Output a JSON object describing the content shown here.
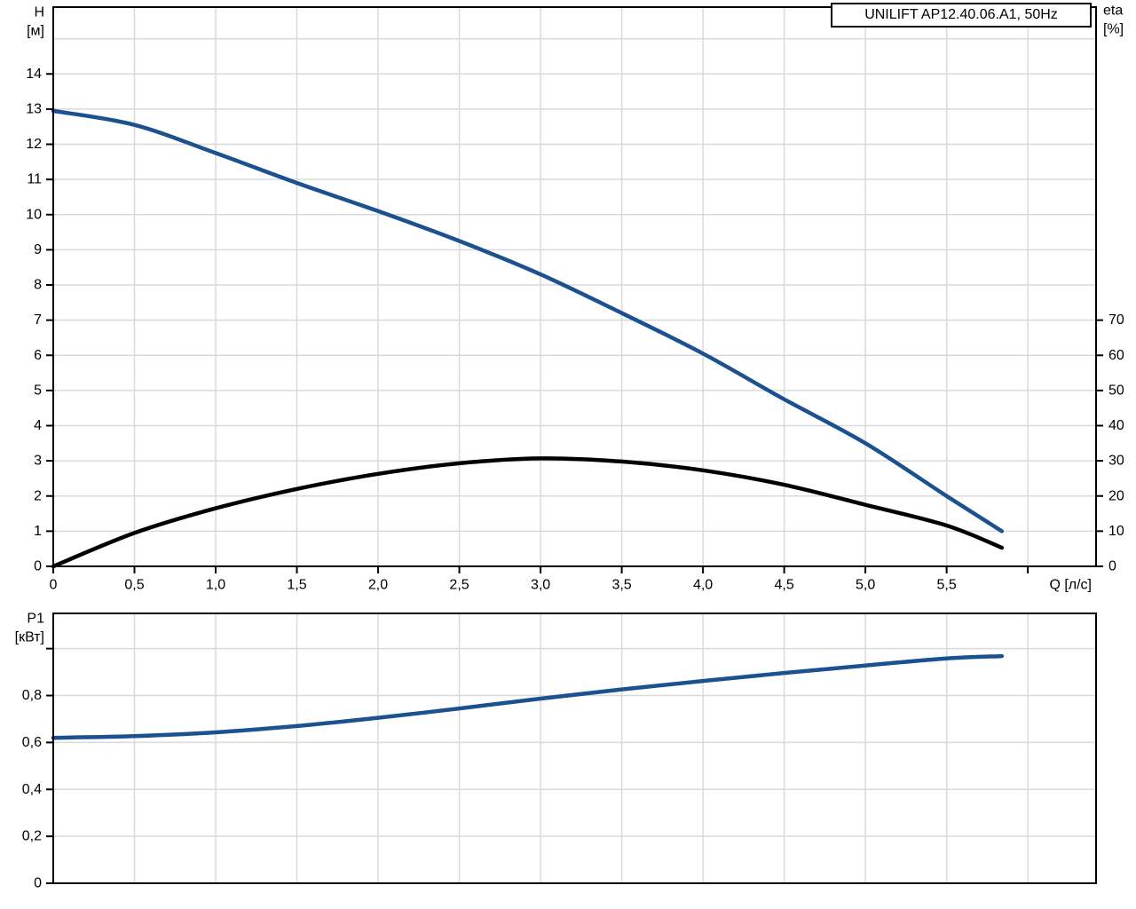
{
  "colors": {
    "curve_blue": "#1b5190",
    "curve_black": "#000000",
    "grid": "#d9d9d9",
    "axis": "#000000",
    "background": "#ffffff"
  },
  "chart_data": [
    {
      "type": "line",
      "id": "head-efficiency-chart",
      "title": "UNILIFT AP12.40.06.A1, 50Hz",
      "x_axis": {
        "label": "Q [л/с]",
        "min": 0,
        "max": 6.42,
        "grid_step": 0.5,
        "tick_values": [
          0,
          0.5,
          1.0,
          1.5,
          2.0,
          2.5,
          3.0,
          3.5,
          4.0,
          4.5,
          5.0,
          5.5
        ],
        "tick_labels": [
          "0",
          "0,5",
          "1,0",
          "1,5",
          "2,0",
          "2,5",
          "3,0",
          "3,5",
          "4,0",
          "4,5",
          "5,0",
          "5,5"
        ],
        "extra_tick_values": [
          6.0
        ]
      },
      "y_axis": {
        "label": "H",
        "unit": "[м]",
        "min": 0,
        "max": 15.9,
        "grid_step": 1,
        "tick_values": [
          0,
          1,
          2,
          3,
          4,
          5,
          6,
          7,
          8,
          9,
          10,
          11,
          12,
          13,
          14
        ],
        "tick_labels": [
          "0",
          "1",
          "2",
          "3",
          "4",
          "5",
          "6",
          "7",
          "8",
          "9",
          "10",
          "11",
          "12",
          "13",
          "14"
        ]
      },
      "y2_axis": {
        "label": "eta",
        "unit": "[%]",
        "primary_scale": 0.1,
        "tick_values": [
          0,
          10,
          20,
          30,
          40,
          50,
          60,
          70
        ],
        "tick_labels": [
          "0",
          "10",
          "20",
          "30",
          "40",
          "50",
          "60",
          "70"
        ]
      },
      "series": [
        {
          "name": "H(Q)",
          "axis": "y",
          "color_key": "curve_blue",
          "x": [
            0,
            0.5,
            1.0,
            1.5,
            2.0,
            2.5,
            3.0,
            3.5,
            4.0,
            4.5,
            5.0,
            5.5,
            5.84
          ],
          "y": [
            12.95,
            12.55,
            11.75,
            10.9,
            10.1,
            9.25,
            8.3,
            7.2,
            6.05,
            4.75,
            3.5,
            2.0,
            1.0
          ]
        },
        {
          "name": "eta(Q)",
          "axis": "y2",
          "color_key": "curve_black",
          "x": [
            0,
            0.5,
            1.0,
            1.5,
            2.0,
            2.5,
            3.0,
            3.5,
            4.0,
            4.5,
            5.0,
            5.5,
            5.84
          ],
          "y": [
            0,
            9.5,
            16.5,
            22.0,
            26.3,
            29.3,
            30.7,
            29.8,
            27.3,
            23.2,
            17.5,
            11.6,
            5.3
          ]
        }
      ]
    },
    {
      "type": "line",
      "id": "power-chart",
      "title": "",
      "x_axis": {
        "label": "",
        "min": 0,
        "max": 6.42,
        "grid_step": 0.5,
        "tick_values": [],
        "tick_labels": [],
        "extra_tick_values": []
      },
      "y_axis": {
        "label": "P1",
        "unit": "[кВт]",
        "min": 0,
        "max": 1.15,
        "grid_step": 0.2,
        "tick_values": [
          0,
          0.2,
          0.4,
          0.6,
          0.8
        ],
        "tick_labels": [
          "0",
          "0,2",
          "0,4",
          "0,6",
          "0,8"
        ],
        "extra_tick_values": [
          1.0
        ]
      },
      "series": [
        {
          "name": "P1(Q)",
          "axis": "y",
          "color_key": "curve_blue",
          "x": [
            0,
            0.5,
            1.0,
            1.5,
            2.0,
            2.5,
            3.0,
            3.5,
            4.0,
            4.5,
            5.0,
            5.5,
            5.84
          ],
          "y": [
            0.62,
            0.627,
            0.643,
            0.67,
            0.705,
            0.745,
            0.787,
            0.826,
            0.862,
            0.896,
            0.928,
            0.958,
            0.968
          ]
        }
      ]
    }
  ]
}
